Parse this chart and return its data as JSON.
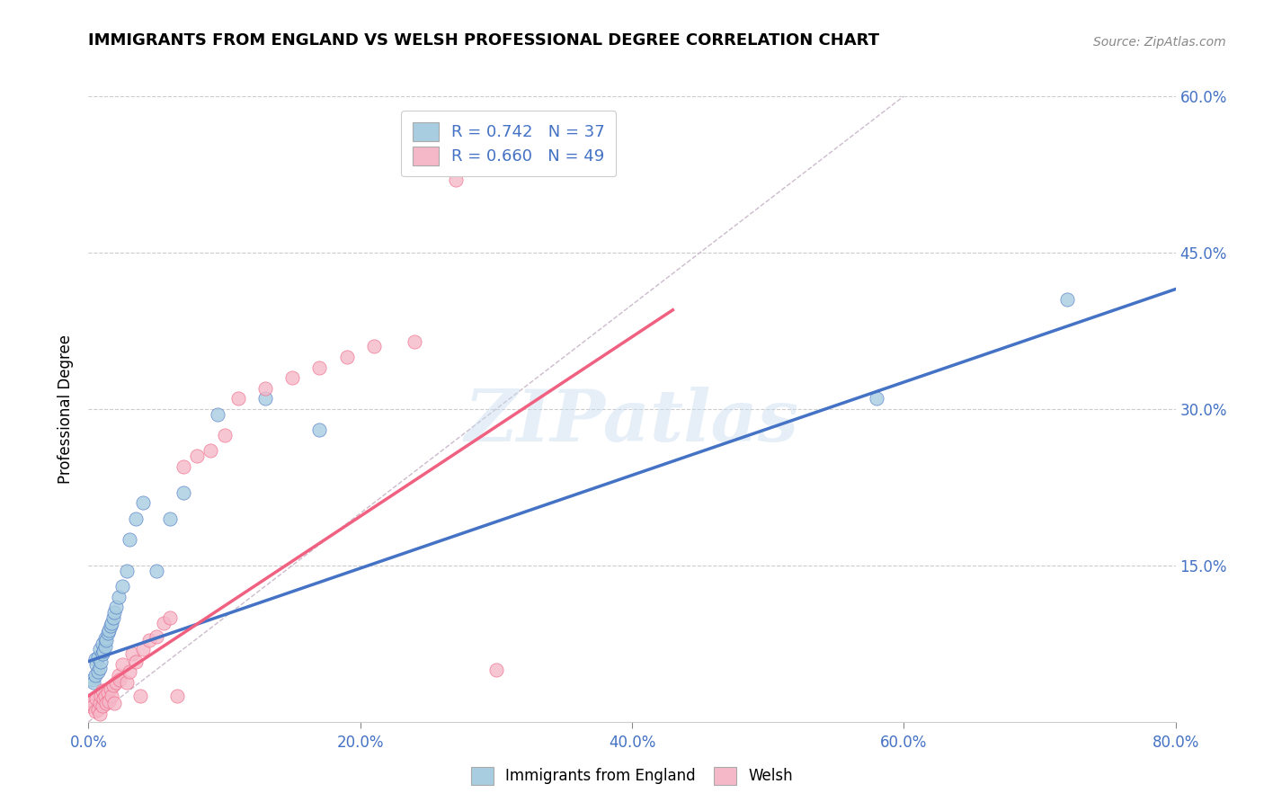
{
  "title": "IMMIGRANTS FROM ENGLAND VS WELSH PROFESSIONAL DEGREE CORRELATION CHART",
  "source": "Source: ZipAtlas.com",
  "ylabel": "Professional Degree",
  "watermark": "ZIPatlas",
  "xlim": [
    0,
    0.8
  ],
  "ylim": [
    0,
    0.6
  ],
  "xticks": [
    0.0,
    0.2,
    0.4,
    0.6,
    0.8
  ],
  "yticks": [
    0.0,
    0.15,
    0.3,
    0.45,
    0.6
  ],
  "xtick_labels": [
    "0.0%",
    "20.0%",
    "40.0%",
    "60.0%",
    "80.0%"
  ],
  "ytick_labels_right": [
    "",
    "15.0%",
    "30.0%",
    "45.0%",
    "60.0%"
  ],
  "blue_color": "#a8cce0",
  "pink_color": "#f5b8c8",
  "blue_line_color": "#4472c4",
  "pink_line_color": "#f06080",
  "diag_color": "#ccbbcc",
  "legend_R1": "0.742",
  "legend_N1": "37",
  "legend_R2": "0.660",
  "legend_N2": "49",
  "blue_scatter_x": [
    0.003,
    0.004,
    0.005,
    0.005,
    0.006,
    0.007,
    0.007,
    0.008,
    0.008,
    0.009,
    0.01,
    0.01,
    0.011,
    0.012,
    0.012,
    0.013,
    0.014,
    0.015,
    0.016,
    0.017,
    0.018,
    0.019,
    0.02,
    0.022,
    0.025,
    0.028,
    0.03,
    0.035,
    0.04,
    0.05,
    0.06,
    0.07,
    0.095,
    0.13,
    0.17,
    0.58,
    0.72
  ],
  "blue_scatter_y": [
    0.04,
    0.038,
    0.045,
    0.06,
    0.055,
    0.048,
    0.062,
    0.052,
    0.07,
    0.058,
    0.065,
    0.075,
    0.068,
    0.072,
    0.08,
    0.078,
    0.085,
    0.088,
    0.092,
    0.095,
    0.1,
    0.105,
    0.11,
    0.12,
    0.13,
    0.145,
    0.175,
    0.195,
    0.21,
    0.145,
    0.195,
    0.22,
    0.295,
    0.31,
    0.28,
    0.31,
    0.405
  ],
  "pink_scatter_x": [
    0.001,
    0.002,
    0.003,
    0.004,
    0.005,
    0.006,
    0.007,
    0.008,
    0.008,
    0.009,
    0.01,
    0.01,
    0.011,
    0.012,
    0.013,
    0.014,
    0.015,
    0.016,
    0.017,
    0.018,
    0.019,
    0.02,
    0.022,
    0.023,
    0.025,
    0.028,
    0.03,
    0.032,
    0.035,
    0.038,
    0.04,
    0.045,
    0.05,
    0.055,
    0.06,
    0.065,
    0.07,
    0.08,
    0.09,
    0.1,
    0.11,
    0.13,
    0.15,
    0.17,
    0.19,
    0.21,
    0.24,
    0.27,
    0.3
  ],
  "pink_scatter_y": [
    0.015,
    0.018,
    0.02,
    0.015,
    0.01,
    0.022,
    0.012,
    0.018,
    0.008,
    0.025,
    0.015,
    0.03,
    0.022,
    0.025,
    0.018,
    0.028,
    0.02,
    0.032,
    0.025,
    0.035,
    0.018,
    0.038,
    0.045,
    0.04,
    0.055,
    0.038,
    0.048,
    0.065,
    0.058,
    0.025,
    0.07,
    0.078,
    0.082,
    0.095,
    0.1,
    0.025,
    0.245,
    0.255,
    0.26,
    0.275,
    0.31,
    0.32,
    0.33,
    0.34,
    0.35,
    0.36,
    0.365,
    0.52,
    0.05
  ],
  "blue_line_x": [
    0.0,
    0.8
  ],
  "blue_line_y": [
    0.058,
    0.415
  ],
  "pink_line_x": [
    0.0,
    0.43
  ],
  "pink_line_y": [
    0.025,
    0.395
  ],
  "background_color": "#ffffff",
  "grid_color": "#cccccc"
}
